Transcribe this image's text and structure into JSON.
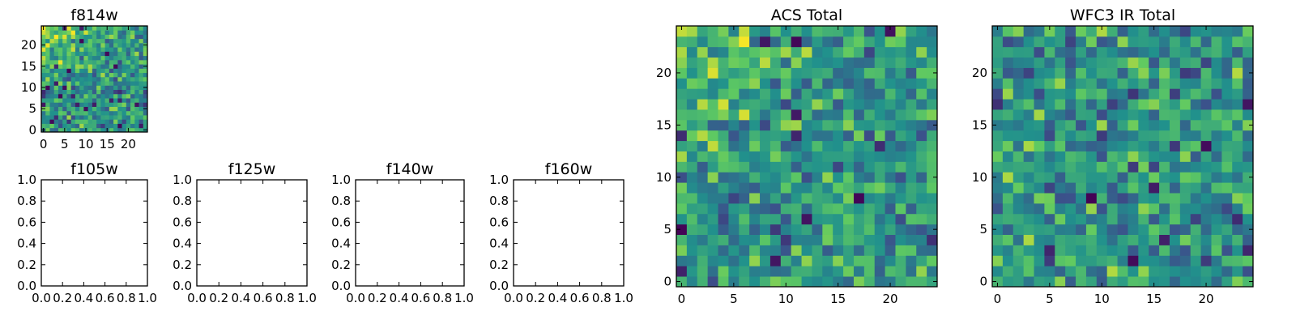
{
  "colormap": "viridis",
  "colors": {
    "viridis": [
      "#440154",
      "#3b528b",
      "#21918c",
      "#5ec962",
      "#fde725"
    ],
    "axes": "#000000",
    "background": "#ffffff"
  },
  "chart_data": [
    {
      "id": "f814w",
      "type": "heatmap",
      "title": "f814w",
      "x_ticks": [
        "0",
        "5",
        "10",
        "15",
        "20"
      ],
      "y_ticks": [
        "0",
        "5",
        "10",
        "15",
        "20"
      ],
      "xlim": [
        -0.5,
        24.5
      ],
      "ylim": [
        -0.5,
        24.5
      ],
      "grid_size": [
        25,
        25
      ],
      "value_range": [
        0,
        1
      ],
      "seed": 814,
      "bias": {
        "upper_left": 0.28
      }
    },
    {
      "id": "f105w",
      "type": "heatmap",
      "title": "f105w",
      "empty": true,
      "x_ticks": [
        "0.0",
        "0.2",
        "0.4",
        "0.6",
        "0.8",
        "1.0"
      ],
      "y_ticks": [
        "0.0",
        "0.2",
        "0.4",
        "0.6",
        "0.8",
        "1.0"
      ],
      "xlim": [
        0,
        1
      ],
      "ylim": [
        0,
        1
      ]
    },
    {
      "id": "f125w",
      "type": "heatmap",
      "title": "f125w",
      "empty": true,
      "x_ticks": [
        "0.0",
        "0.2",
        "0.4",
        "0.6",
        "0.8",
        "1.0"
      ],
      "y_ticks": [
        "0.0",
        "0.2",
        "0.4",
        "0.6",
        "0.8",
        "1.0"
      ],
      "xlim": [
        0,
        1
      ],
      "ylim": [
        0,
        1
      ]
    },
    {
      "id": "f140w",
      "type": "heatmap",
      "title": "f140w",
      "empty": true,
      "x_ticks": [
        "0.0",
        "0.2",
        "0.4",
        "0.6",
        "0.8",
        "1.0"
      ],
      "y_ticks": [
        "0.0",
        "0.2",
        "0.4",
        "0.6",
        "0.8",
        "1.0"
      ],
      "xlim": [
        0,
        1
      ],
      "ylim": [
        0,
        1
      ]
    },
    {
      "id": "f160w",
      "type": "heatmap",
      "title": "f160w",
      "empty": true,
      "x_ticks": [
        "0.0",
        "0.2",
        "0.4",
        "0.6",
        "0.8",
        "1.0"
      ],
      "y_ticks": [
        "0.0",
        "0.2",
        "0.4",
        "0.6",
        "0.8",
        "1.0"
      ],
      "xlim": [
        0,
        1
      ],
      "ylim": [
        0,
        1
      ]
    },
    {
      "id": "acs-total",
      "type": "heatmap",
      "title": "ACS Total",
      "x_ticks": [
        "0",
        "5",
        "10",
        "15",
        "20"
      ],
      "y_ticks": [
        "0",
        "5",
        "10",
        "15",
        "20"
      ],
      "xlim": [
        -0.5,
        24.5
      ],
      "ylim": [
        -0.5,
        24.5
      ],
      "grid_size": [
        25,
        25
      ],
      "value_range": [
        0,
        1
      ],
      "seed": 1107,
      "bias": {
        "upper_left": 0.22
      }
    },
    {
      "id": "wfc3-ir-total",
      "type": "heatmap",
      "title": "WFC3 IR Total",
      "x_ticks": [
        "0",
        "5",
        "10",
        "15",
        "20"
      ],
      "y_ticks": [
        "0",
        "5",
        "10",
        "15",
        "20"
      ],
      "xlim": [
        -0.5,
        24.5
      ],
      "ylim": [
        -0.5,
        24.5
      ],
      "grid_size": [
        25,
        25
      ],
      "value_range": [
        0,
        1
      ],
      "seed": 3160,
      "bias": {
        "upper_left": 0.0
      }
    }
  ]
}
